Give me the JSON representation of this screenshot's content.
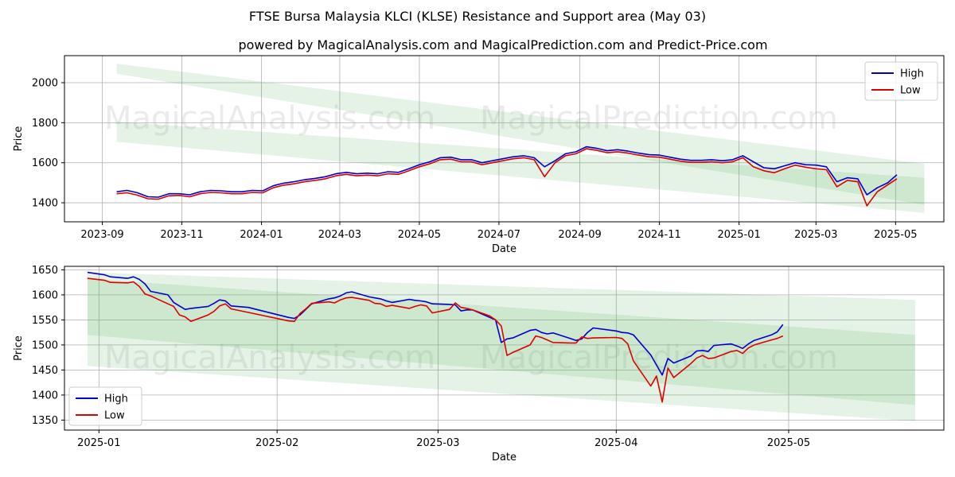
{
  "figure": {
    "title": "FTSE Bursa Malaysia KLCI (KLSE) Resistance and Support area (May 03)",
    "subtitle": "powered by MagicalAnalysis.com and MagicalPrediction.com and Predict-Price.com",
    "watermarks": [
      "MagicalAnalysis.com",
      "MagicalPrediction.com"
    ]
  },
  "colors": {
    "high": "#0000cc",
    "low": "#dd0000",
    "band": "#4caf50",
    "grid": "#b0b0b0"
  },
  "chart_data": [
    {
      "type": "line",
      "title": "",
      "xlabel": "Date",
      "ylabel": "Price",
      "x_ticks": [
        "2023-09",
        "2023-11",
        "2024-01",
        "2024-03",
        "2024-05",
        "2024-07",
        "2024-09",
        "2024-11",
        "2025-01",
        "2025-03",
        "2025-05"
      ],
      "y_ticks": [
        1400,
        1600,
        1800,
        2000
      ],
      "xlim": [
        "2023-08-03",
        "2025-06-07"
      ],
      "ylim": [
        1305,
        2135
      ],
      "grid": true,
      "legend": "top-right",
      "series": [
        {
          "name": "High",
          "x": [
            "2023-09-12",
            "2023-09-20",
            "2023-09-28",
            "2023-10-06",
            "2023-10-14",
            "2023-10-22",
            "2023-10-30",
            "2023-11-07",
            "2023-11-15",
            "2023-11-23",
            "2023-12-01",
            "2023-12-09",
            "2023-12-17",
            "2023-12-25",
            "2024-01-02",
            "2024-01-10",
            "2024-01-18",
            "2024-01-26",
            "2024-02-03",
            "2024-02-11",
            "2024-02-19",
            "2024-02-27",
            "2024-03-06",
            "2024-03-14",
            "2024-03-22",
            "2024-03-30",
            "2024-04-07",
            "2024-04-15",
            "2024-04-23",
            "2024-05-01",
            "2024-05-09",
            "2024-05-17",
            "2024-05-25",
            "2024-06-02",
            "2024-06-10",
            "2024-06-18",
            "2024-06-26",
            "2024-07-04",
            "2024-07-12",
            "2024-07-20",
            "2024-07-28",
            "2024-08-05",
            "2024-08-13",
            "2024-08-21",
            "2024-08-29",
            "2024-09-06",
            "2024-09-14",
            "2024-09-22",
            "2024-09-30",
            "2024-10-08",
            "2024-10-16",
            "2024-10-24",
            "2024-11-01",
            "2024-11-09",
            "2024-11-17",
            "2024-11-25",
            "2024-12-03",
            "2024-12-11",
            "2024-12-19",
            "2024-12-27",
            "2025-01-04",
            "2025-01-12",
            "2025-01-20",
            "2025-01-28",
            "2025-02-05",
            "2025-02-13",
            "2025-02-21",
            "2025-03-01",
            "2025-03-09",
            "2025-03-17",
            "2025-03-25",
            "2025-04-02",
            "2025-04-09",
            "2025-04-17",
            "2025-04-25",
            "2025-05-02"
          ],
          "values": [
            1455,
            1462,
            1450,
            1430,
            1428,
            1445,
            1445,
            1440,
            1455,
            1462,
            1460,
            1455,
            1455,
            1462,
            1460,
            1485,
            1498,
            1505,
            1515,
            1522,
            1530,
            1545,
            1552,
            1545,
            1548,
            1545,
            1555,
            1552,
            1570,
            1590,
            1605,
            1625,
            1628,
            1615,
            1615,
            1600,
            1610,
            1620,
            1630,
            1635,
            1625,
            1580,
            1610,
            1645,
            1655,
            1680,
            1672,
            1660,
            1665,
            1658,
            1648,
            1640,
            1638,
            1628,
            1618,
            1612,
            1612,
            1615,
            1610,
            1615,
            1635,
            1605,
            1575,
            1570,
            1585,
            1600,
            1590,
            1588,
            1580,
            1505,
            1525,
            1520,
            1440,
            1475,
            1500,
            1540
          ]
        },
        {
          "name": "Low",
          "x": [
            "2023-09-12",
            "2023-09-20",
            "2023-09-28",
            "2023-10-06",
            "2023-10-14",
            "2023-10-22",
            "2023-10-30",
            "2023-11-07",
            "2023-11-15",
            "2023-11-23",
            "2023-12-01",
            "2023-12-09",
            "2023-12-17",
            "2023-12-25",
            "2024-01-02",
            "2024-01-10",
            "2024-01-18",
            "2024-01-26",
            "2024-02-03",
            "2024-02-11",
            "2024-02-19",
            "2024-02-27",
            "2024-03-06",
            "2024-03-14",
            "2024-03-22",
            "2024-03-30",
            "2024-04-07",
            "2024-04-15",
            "2024-04-23",
            "2024-05-01",
            "2024-05-09",
            "2024-05-17",
            "2024-05-25",
            "2024-06-02",
            "2024-06-10",
            "2024-06-18",
            "2024-06-26",
            "2024-07-04",
            "2024-07-12",
            "2024-07-20",
            "2024-07-28",
            "2024-08-05",
            "2024-08-13",
            "2024-08-21",
            "2024-08-29",
            "2024-09-06",
            "2024-09-14",
            "2024-09-22",
            "2024-09-30",
            "2024-10-08",
            "2024-10-16",
            "2024-10-24",
            "2024-11-01",
            "2024-11-09",
            "2024-11-17",
            "2024-11-25",
            "2024-12-03",
            "2024-12-11",
            "2024-12-19",
            "2024-12-27",
            "2025-01-04",
            "2025-01-12",
            "2025-01-20",
            "2025-01-28",
            "2025-02-05",
            "2025-02-13",
            "2025-02-21",
            "2025-03-01",
            "2025-03-09",
            "2025-03-17",
            "2025-03-25",
            "2025-04-02",
            "2025-04-09",
            "2025-04-17",
            "2025-04-25",
            "2025-05-02"
          ],
          "values": [
            1445,
            1450,
            1438,
            1420,
            1418,
            1435,
            1437,
            1430,
            1445,
            1452,
            1450,
            1445,
            1445,
            1452,
            1450,
            1475,
            1488,
            1495,
            1505,
            1512,
            1520,
            1535,
            1542,
            1535,
            1538,
            1535,
            1545,
            1542,
            1560,
            1580,
            1595,
            1615,
            1618,
            1605,
            1605,
            1590,
            1600,
            1610,
            1620,
            1625,
            1615,
            1530,
            1600,
            1635,
            1645,
            1670,
            1662,
            1650,
            1655,
            1648,
            1638,
            1630,
            1628,
            1618,
            1608,
            1602,
            1602,
            1605,
            1600,
            1605,
            1625,
            1580,
            1560,
            1550,
            1570,
            1588,
            1578,
            1570,
            1565,
            1480,
            1512,
            1505,
            1385,
            1455,
            1490,
            1520
          ]
        }
      ],
      "bands": [
        {
          "x": [
            "2023-09-12",
            "2025-05-23"
          ],
          "upper": [
            2095,
            1595
          ],
          "lower": [
            2045,
            1390
          ]
        },
        {
          "x": [
            "2023-09-12",
            "2025-05-23"
          ],
          "upper": [
            1805,
            1525
          ],
          "lower": [
            1705,
            1350
          ]
        }
      ]
    },
    {
      "type": "line",
      "title": "",
      "xlabel": "Date",
      "ylabel": "Price",
      "x_ticks": [
        "2025-01",
        "2025-02",
        "2025-03",
        "2025-04",
        "2025-05"
      ],
      "y_ticks": [
        1350,
        1400,
        1450,
        1500,
        1550,
        1600,
        1650
      ],
      "xlim": [
        "2024-12-26",
        "2025-05-28"
      ],
      "ylim": [
        1330,
        1657
      ],
      "grid": true,
      "legend": "bottom-left",
      "series": [
        {
          "name": "High",
          "x": [
            "2024-12-30",
            "2025-01-02",
            "2025-01-03",
            "2025-01-06",
            "2025-01-07",
            "2025-01-08",
            "2025-01-09",
            "2025-01-10",
            "2025-01-13",
            "2025-01-14",
            "2025-01-15",
            "2025-01-16",
            "2025-01-17",
            "2025-01-20",
            "2025-01-21",
            "2025-01-22",
            "2025-01-23",
            "2025-01-24",
            "2025-01-27",
            "2025-02-03",
            "2025-02-04",
            "2025-02-05",
            "2025-02-06",
            "2025-02-07",
            "2025-02-10",
            "2025-02-11",
            "2025-02-12",
            "2025-02-13",
            "2025-02-14",
            "2025-02-17",
            "2025-02-18",
            "2025-02-19",
            "2025-02-20",
            "2025-02-21",
            "2025-02-24",
            "2025-02-25",
            "2025-02-26",
            "2025-02-27",
            "2025-02-28",
            "2025-03-03",
            "2025-03-04",
            "2025-03-05",
            "2025-03-06",
            "2025-03-07",
            "2025-03-10",
            "2025-03-11",
            "2025-03-12",
            "2025-03-13",
            "2025-03-14",
            "2025-03-17",
            "2025-03-18",
            "2025-03-19",
            "2025-03-20",
            "2025-03-21",
            "2025-03-24",
            "2025-03-25",
            "2025-03-26",
            "2025-03-27",
            "2025-03-28",
            "2025-04-01",
            "2025-04-02",
            "2025-04-03",
            "2025-04-04",
            "2025-04-07",
            "2025-04-08",
            "2025-04-09",
            "2025-04-10",
            "2025-04-11",
            "2025-04-14",
            "2025-04-15",
            "2025-04-16",
            "2025-04-17",
            "2025-04-18",
            "2025-04-21",
            "2025-04-22",
            "2025-04-23",
            "2025-04-24",
            "2025-04-25",
            "2025-04-28",
            "2025-04-29",
            "2025-04-30"
          ],
          "values": [
            1645,
            1640,
            1636,
            1633,
            1636,
            1631,
            1622,
            1607,
            1600,
            1585,
            1578,
            1571,
            1573,
            1577,
            1583,
            1590,
            1588,
            1578,
            1575,
            1555,
            1553,
            1560,
            1571,
            1582,
            1592,
            1594,
            1598,
            1604,
            1606,
            1596,
            1594,
            1592,
            1588,
            1585,
            1591,
            1589,
            1588,
            1586,
            1582,
            1581,
            1580,
            1568,
            1570,
            1570,
            1555,
            1550,
            1505,
            1512,
            1514,
            1529,
            1531,
            1525,
            1522,
            1524,
            1513,
            1509,
            1512,
            1525,
            1534,
            1528,
            1525,
            1524,
            1520,
            1480,
            1460,
            1440,
            1473,
            1464,
            1478,
            1488,
            1489,
            1487,
            1499,
            1502,
            1498,
            1493,
            1502,
            1509,
            1520,
            1526,
            1541
          ]
        },
        {
          "name": "Low",
          "x": [
            "2024-12-30",
            "2025-01-02",
            "2025-01-03",
            "2025-01-06",
            "2025-01-07",
            "2025-01-08",
            "2025-01-09",
            "2025-01-10",
            "2025-01-13",
            "2025-01-14",
            "2025-01-15",
            "2025-01-16",
            "2025-01-17",
            "2025-01-20",
            "2025-01-21",
            "2025-01-22",
            "2025-01-23",
            "2025-01-24",
            "2025-01-27",
            "2025-02-03",
            "2025-02-04",
            "2025-02-05",
            "2025-02-06",
            "2025-02-07",
            "2025-02-10",
            "2025-02-11",
            "2025-02-12",
            "2025-02-13",
            "2025-02-14",
            "2025-02-17",
            "2025-02-18",
            "2025-02-19",
            "2025-02-20",
            "2025-02-21",
            "2025-02-24",
            "2025-02-25",
            "2025-02-26",
            "2025-02-27",
            "2025-02-28",
            "2025-03-03",
            "2025-03-04",
            "2025-03-05",
            "2025-03-06",
            "2025-03-07",
            "2025-03-10",
            "2025-03-11",
            "2025-03-12",
            "2025-03-13",
            "2025-03-14",
            "2025-03-17",
            "2025-03-18",
            "2025-03-19",
            "2025-03-20",
            "2025-03-21",
            "2025-03-24",
            "2025-03-25",
            "2025-03-26",
            "2025-03-27",
            "2025-03-28",
            "2025-04-01",
            "2025-04-02",
            "2025-04-03",
            "2025-04-04",
            "2025-04-07",
            "2025-04-08",
            "2025-04-09",
            "2025-04-10",
            "2025-04-11",
            "2025-04-14",
            "2025-04-15",
            "2025-04-16",
            "2025-04-17",
            "2025-04-18",
            "2025-04-21",
            "2025-04-22",
            "2025-04-23",
            "2025-04-24",
            "2025-04-25",
            "2025-04-28",
            "2025-04-29",
            "2025-04-30"
          ],
          "values": [
            1633,
            1629,
            1625,
            1624,
            1626,
            1617,
            1602,
            1598,
            1582,
            1577,
            1560,
            1556,
            1547,
            1560,
            1567,
            1578,
            1582,
            1572,
            1565,
            1548,
            1547,
            1563,
            1572,
            1583,
            1586,
            1584,
            1590,
            1594,
            1595,
            1589,
            1583,
            1582,
            1577,
            1579,
            1573,
            1577,
            1580,
            1578,
            1564,
            1571,
            1584,
            1575,
            1573,
            1570,
            1558,
            1550,
            1538,
            1479,
            1485,
            1500,
            1518,
            1515,
            1510,
            1505,
            1504,
            1504,
            1516,
            1513,
            1514,
            1515,
            1513,
            1502,
            1468,
            1418,
            1438,
            1386,
            1454,
            1435,
            1463,
            1474,
            1479,
            1473,
            1474,
            1487,
            1489,
            1483,
            1494,
            1500,
            1510,
            1513,
            1518
          ]
        }
      ],
      "bands": [
        {
          "x": [
            "2024-12-30",
            "2025-05-23"
          ],
          "upper": [
            1645,
            1590
          ],
          "lower": [
            1520,
            1380
          ]
        },
        {
          "x": [
            "2024-12-30",
            "2025-05-23"
          ],
          "upper": [
            1632,
            1520
          ],
          "lower": [
            1458,
            1348
          ]
        }
      ]
    }
  ]
}
